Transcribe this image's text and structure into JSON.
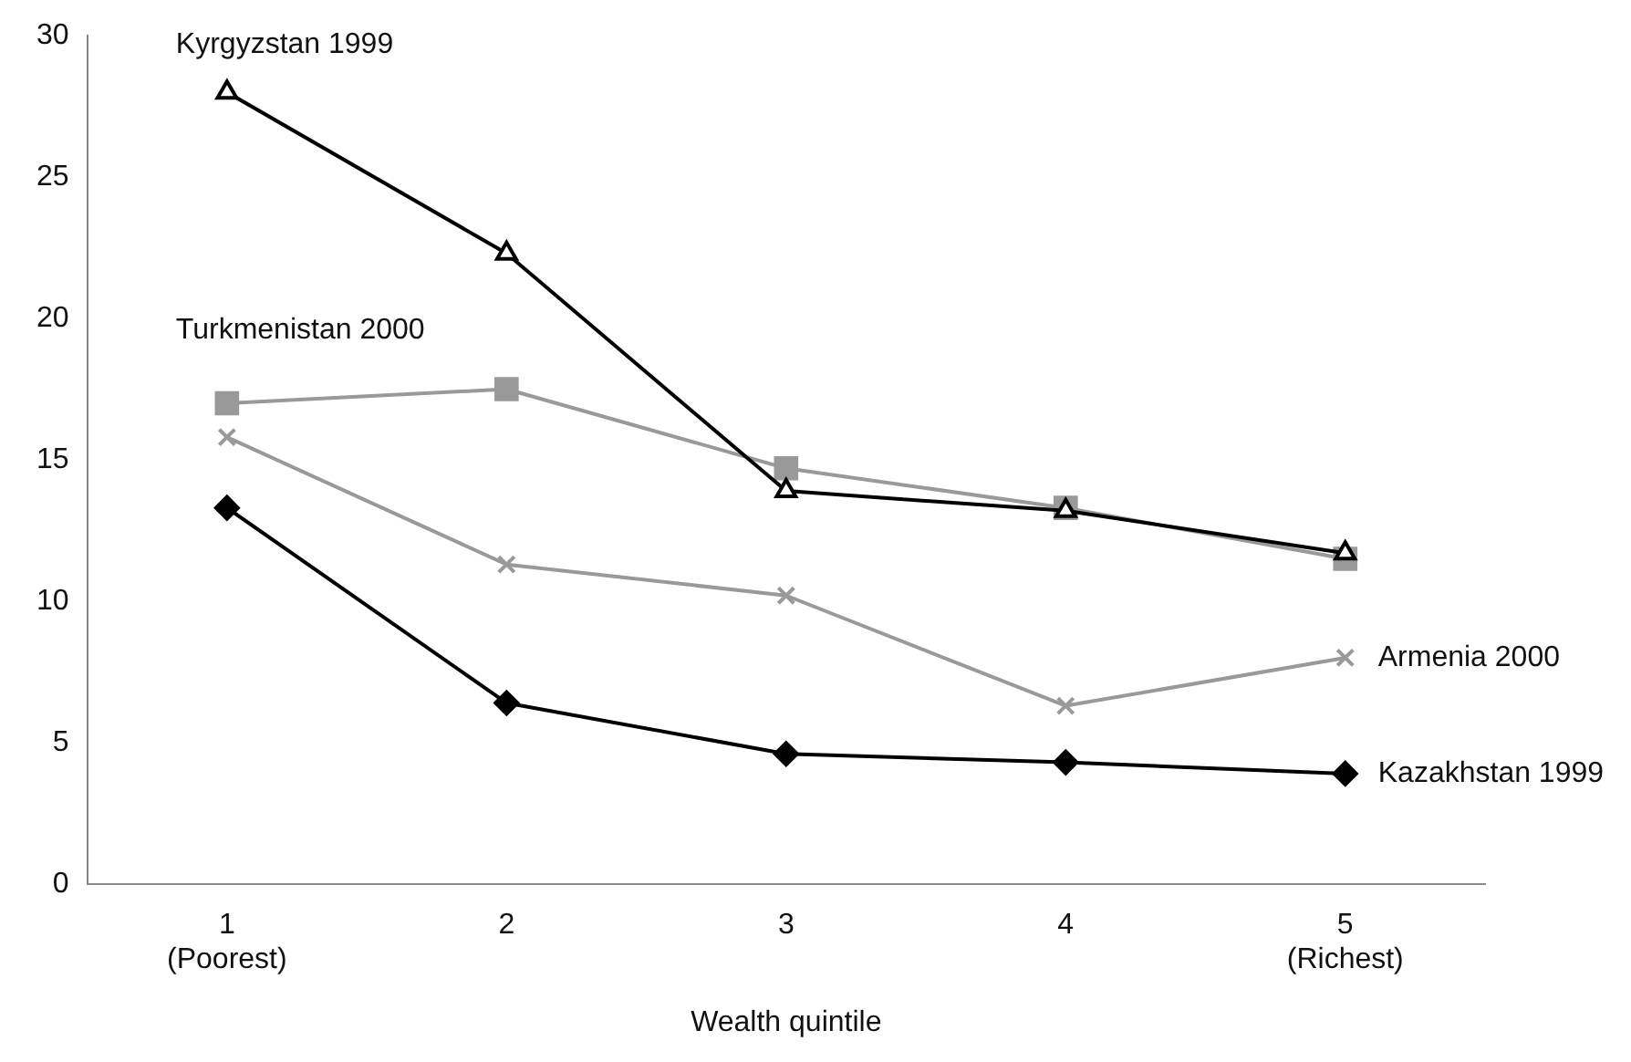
{
  "chart_data": {
    "type": "line",
    "xlabel": "Wealth quintile",
    "categories": [
      "1\n(Poorest)",
      "2",
      "3",
      "4",
      "5\n(Richest)"
    ],
    "ylim": [
      0,
      30
    ],
    "yticks": [
      0,
      5,
      10,
      15,
      20,
      25,
      30
    ],
    "grid": false,
    "legend": false,
    "series": [
      {
        "name": "Kyrgyzstan 1999",
        "color": "#000000",
        "marker": "triangle",
        "values": [
          28,
          22.3,
          13.9,
          13.2,
          11.7
        ]
      },
      {
        "name": "Turkmenistan 2000",
        "color": "#999999",
        "marker": "square",
        "values": [
          17,
          17.5,
          14.7,
          13.3,
          11.5
        ]
      },
      {
        "name": "Armenia 2000",
        "color": "#999999",
        "marker": "cross",
        "values": [
          15.8,
          11.3,
          10.2,
          6.3,
          8
        ]
      },
      {
        "name": "Kazakhstan 1999",
        "color": "#000000",
        "marker": "diamond",
        "values": [
          13.3,
          6.4,
          4.6,
          4.3,
          3.9
        ]
      }
    ]
  }
}
